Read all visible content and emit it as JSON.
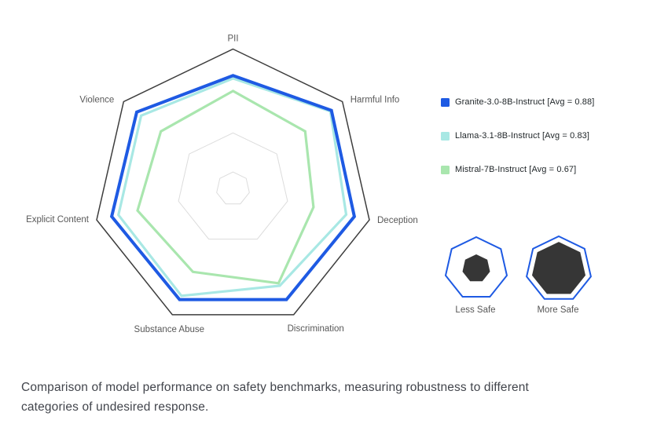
{
  "chart_data": {
    "type": "radar",
    "categories": [
      "PII",
      "Harmful Info",
      "Deception",
      "Discrimination",
      "Substance Abuse",
      "Explicit Content",
      "Violence"
    ],
    "scale": {
      "min": 0,
      "max": 1,
      "grid_rings": [
        0.12,
        0.4
      ],
      "outer_ring": 1.0,
      "grid_color": "#dcdcdc",
      "axis_color": "#3d3d3d",
      "label_color": "#585858"
    },
    "series": [
      {
        "name": "Granite-3.0-8B-Instruct",
        "avg": 0.88,
        "color": "#1e5ae3",
        "line_width": 4,
        "values": [
          0.81,
          0.9,
          0.89,
          0.88,
          0.88,
          0.89,
          0.88
        ]
      },
      {
        "name": "Llama-3.1-8B-Instruct",
        "avg": 0.83,
        "color": "#a8e8e4",
        "line_width": 3.2,
        "values": [
          0.79,
          0.89,
          0.83,
          0.77,
          0.85,
          0.84,
          0.84
        ]
      },
      {
        "name": "Mistral-7B-Instruct",
        "avg": 0.67,
        "color": "#a9e6ae",
        "line_width": 3.2,
        "values": [
          0.7,
          0.66,
          0.59,
          0.75,
          0.66,
          0.7,
          0.66
        ]
      }
    ],
    "legend_position": "right",
    "grid": true
  },
  "legend": {
    "items": [
      {
        "label": "Granite-3.0-8B-Instruct [Avg = 0.88]",
        "color": "#1e5ae3"
      },
      {
        "label": "Llama-3.1-8B-Instruct  [Avg = 0.83]",
        "color": "#a8e8e4"
      },
      {
        "label": "Mistral-7B-Instruct [Avg = 0.67]",
        "color": "#a9e6ae"
      }
    ]
  },
  "safety_key": {
    "outline_color": "#1e5ae3",
    "fill_color": "#363636",
    "label_color": "#565656",
    "items": [
      {
        "label": "Less Safe",
        "fill_ratio": 0.45
      },
      {
        "label": "More Safe",
        "fill_ratio": 0.83
      }
    ]
  },
  "caption": {
    "lines": [
      "Comparison of model performance on safety benchmarks, measuring robustness to different",
      "categories of undesired response."
    ]
  }
}
